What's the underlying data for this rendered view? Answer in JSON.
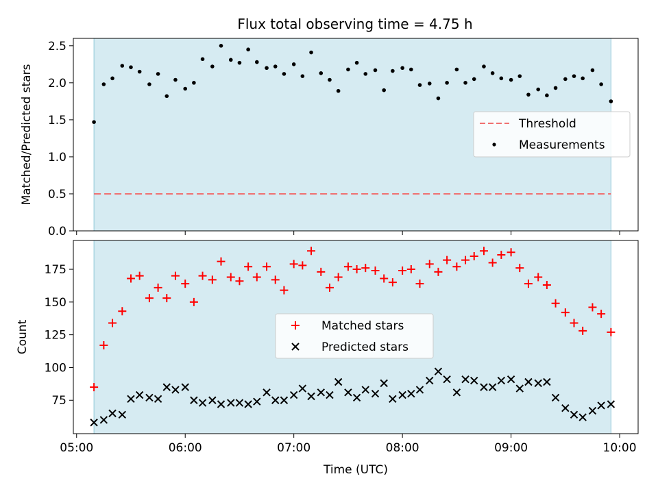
{
  "title": "Flux total observing time = 4.75 h",
  "chart_data": [
    {
      "type": "scatter",
      "panel": "top",
      "ylabel": "Matched/Predicted stars",
      "ylim": [
        0,
        2.6
      ],
      "yticks": [
        "0.0",
        "0.5",
        "1.0",
        "1.5",
        "2.0",
        "2.5"
      ],
      "xlim": [
        4.97,
        10.17
      ],
      "observing_window": [
        5.16,
        9.92
      ],
      "legend_position": "center-right",
      "threshold": {
        "name": "Threshold",
        "value": 0.5,
        "color": "#f07070",
        "style": "dashed"
      },
      "series": [
        {
          "name": "Measurements",
          "color": "#000000",
          "x": [
            5.16,
            5.25,
            5.33,
            5.42,
            5.5,
            5.58,
            5.67,
            5.75,
            5.83,
            5.91,
            6.0,
            6.08,
            6.16,
            6.25,
            6.33,
            6.42,
            6.5,
            6.58,
            6.66,
            6.75,
            6.83,
            6.91,
            7.0,
            7.08,
            7.16,
            7.25,
            7.33,
            7.41,
            7.5,
            7.58,
            7.66,
            7.75,
            7.83,
            7.91,
            8.0,
            8.08,
            8.16,
            8.25,
            8.33,
            8.41,
            8.5,
            8.58,
            8.66,
            8.75,
            8.83,
            8.91,
            9.0,
            9.08,
            9.16,
            9.25,
            9.33,
            9.41,
            9.5,
            9.58,
            9.66,
            9.75,
            9.83,
            9.92
          ],
          "y": [
            1.47,
            1.98,
            2.06,
            2.23,
            2.21,
            2.15,
            1.98,
            2.12,
            1.82,
            2.04,
            1.92,
            2.0,
            2.32,
            2.22,
            2.5,
            2.31,
            2.27,
            2.45,
            2.28,
            2.2,
            2.22,
            2.12,
            2.25,
            2.09,
            2.41,
            2.13,
            2.04,
            1.89,
            2.18,
            2.27,
            2.12,
            2.17,
            1.9,
            2.16,
            2.2,
            2.18,
            1.97,
            1.99,
            1.79,
            2.0,
            2.18,
            2.0,
            2.05,
            2.22,
            2.13,
            2.06,
            2.04,
            2.09,
            1.84,
            1.91,
            1.83,
            1.93,
            2.05,
            2.09,
            2.06,
            2.17,
            1.98,
            1.75
          ]
        }
      ]
    },
    {
      "type": "scatter",
      "panel": "bottom",
      "xlabel": "Time (UTC)",
      "ylabel": "Count",
      "ylim": [
        49.5,
        197
      ],
      "yticks": [
        "75",
        "100",
        "125",
        "150",
        "175"
      ],
      "xlim": [
        4.97,
        10.17
      ],
      "xticks": [
        {
          "value": 5,
          "label": "05:00"
        },
        {
          "value": 6,
          "label": "06:00"
        },
        {
          "value": 7,
          "label": "07:00"
        },
        {
          "value": 8,
          "label": "08:00"
        },
        {
          "value": 9,
          "label": "09:00"
        },
        {
          "value": 10,
          "label": "10:00"
        }
      ],
      "observing_window": [
        5.16,
        9.92
      ],
      "legend_position": "center",
      "series": [
        {
          "name": "Matched stars",
          "marker": "plus",
          "color": "#ff0000",
          "x": [
            5.16,
            5.25,
            5.33,
            5.42,
            5.5,
            5.58,
            5.67,
            5.75,
            5.83,
            5.91,
            6.0,
            6.08,
            6.16,
            6.25,
            6.33,
            6.42,
            6.5,
            6.58,
            6.66,
            6.75,
            6.83,
            6.91,
            7.0,
            7.08,
            7.16,
            7.25,
            7.33,
            7.41,
            7.5,
            7.58,
            7.66,
            7.75,
            7.83,
            7.91,
            8.0,
            8.08,
            8.16,
            8.25,
            8.33,
            8.41,
            8.5,
            8.58,
            8.66,
            8.75,
            8.83,
            8.91,
            9.0,
            9.08,
            9.16,
            9.25,
            9.33,
            9.41,
            9.5,
            9.58,
            9.66,
            9.75,
            9.83,
            9.92
          ],
          "y": [
            85,
            117,
            134,
            143,
            168,
            170,
            153,
            161,
            153,
            170,
            164,
            150,
            170,
            167,
            181,
            169,
            166,
            177,
            169,
            177,
            167,
            159,
            179,
            178,
            189,
            173,
            161,
            169,
            177,
            175,
            176,
            174,
            168,
            165,
            174,
            175,
            164,
            179,
            173,
            182,
            177,
            182,
            185,
            189,
            180,
            186,
            188,
            176,
            164,
            169,
            163,
            149,
            142,
            134,
            128,
            146,
            141,
            127
          ]
        },
        {
          "name": "Predicted stars",
          "marker": "x",
          "color": "#000000",
          "x": [
            5.16,
            5.25,
            5.33,
            5.42,
            5.5,
            5.58,
            5.67,
            5.75,
            5.83,
            5.91,
            6.0,
            6.08,
            6.16,
            6.25,
            6.33,
            6.42,
            6.5,
            6.58,
            6.66,
            6.75,
            6.83,
            6.91,
            7.0,
            7.08,
            7.16,
            7.25,
            7.33,
            7.41,
            7.5,
            7.58,
            7.66,
            7.75,
            7.83,
            7.91,
            8.0,
            8.08,
            8.16,
            8.25,
            8.33,
            8.41,
            8.5,
            8.58,
            8.66,
            8.75,
            8.83,
            8.91,
            9.0,
            9.08,
            9.16,
            9.25,
            9.33,
            9.41,
            9.5,
            9.58,
            9.66,
            9.75,
            9.83,
            9.92
          ],
          "y": [
            58,
            60,
            65,
            64,
            76,
            79,
            77,
            76,
            85,
            83,
            85,
            75,
            73,
            75,
            72,
            73,
            73,
            72,
            74,
            81,
            75,
            75,
            79,
            84,
            78,
            81,
            79,
            89,
            81,
            77,
            83,
            80,
            88,
            76,
            79,
            80,
            83,
            90,
            97,
            91,
            81,
            91,
            90,
            85,
            85,
            90,
            91,
            84,
            89,
            88,
            89,
            77,
            69,
            64,
            62,
            67,
            71,
            72
          ]
        }
      ]
    }
  ]
}
